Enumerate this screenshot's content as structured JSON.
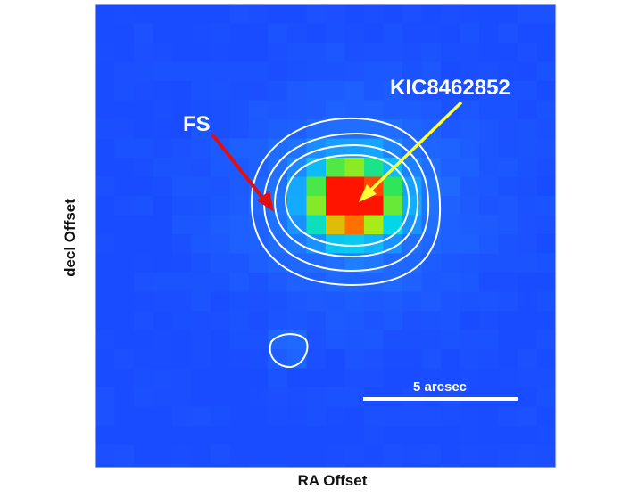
{
  "image": {
    "axes": {
      "xlabel": "RA Offset",
      "ylabel": "decl Offset"
    },
    "annotations": {
      "target_label": "KIC8462852",
      "companion_label": "FS",
      "scale_bar_label": "5 arcsec"
    },
    "colors": {
      "background": "#1a4cff",
      "target_arrow": "#ffff33",
      "companion_arrow": "#e01010",
      "contours": "#ffffff",
      "core": "#ff1a00"
    }
  }
}
